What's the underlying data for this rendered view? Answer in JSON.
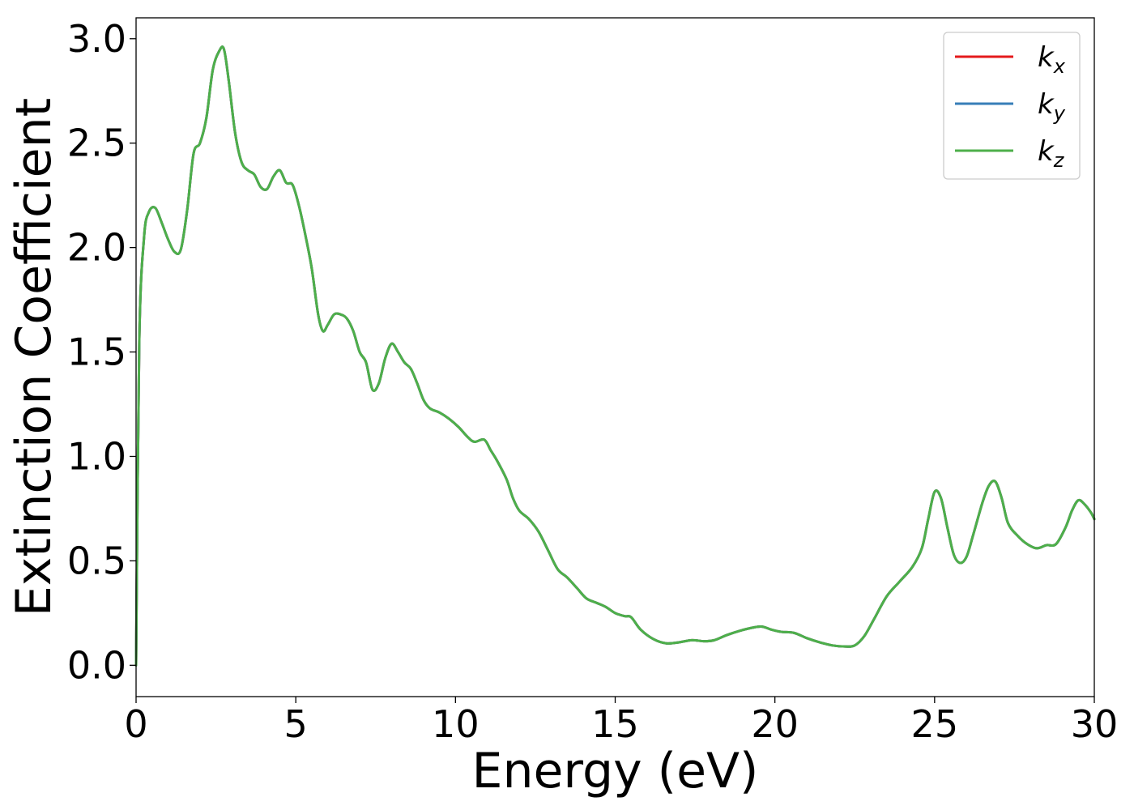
{
  "chart_data": {
    "type": "line",
    "title": "",
    "xlabel": "Energy (eV)",
    "ylabel": "Extinction Coefficient",
    "xlim": [
      0,
      30
    ],
    "ylim": [
      -0.15,
      3.1
    ],
    "xticks": [
      0,
      5,
      10,
      15,
      20,
      25,
      30
    ],
    "xtick_labels": [
      "0",
      "5",
      "10",
      "15",
      "20",
      "25",
      "30"
    ],
    "yticks": [
      0.0,
      0.5,
      1.0,
      1.5,
      2.0,
      2.5,
      3.0
    ],
    "ytick_labels": [
      "0.0",
      "0.5",
      "1.0",
      "1.5",
      "2.0",
      "2.5",
      "3.0"
    ],
    "grid": false,
    "legend_position": "top-right",
    "x": [
      0,
      0.1,
      0.25,
      0.4,
      0.6,
      0.8,
      1.0,
      1.2,
      1.4,
      1.6,
      1.8,
      2.0,
      2.2,
      2.4,
      2.6,
      2.75,
      2.9,
      3.1,
      3.3,
      3.5,
      3.7,
      3.9,
      4.1,
      4.3,
      4.5,
      4.7,
      4.9,
      5.1,
      5.3,
      5.5,
      5.7,
      5.85,
      6.0,
      6.2,
      6.4,
      6.6,
      6.8,
      7.0,
      7.2,
      7.4,
      7.6,
      7.8,
      8.0,
      8.2,
      8.4,
      8.6,
      8.8,
      9.0,
      9.2,
      9.5,
      9.8,
      10.1,
      10.4,
      10.6,
      10.9,
      11.1,
      11.3,
      11.6,
      11.8,
      12.0,
      12.3,
      12.6,
      12.9,
      13.2,
      13.5,
      13.8,
      14.1,
      14.4,
      14.7,
      15.0,
      15.3,
      15.5,
      15.8,
      16.2,
      16.6,
      17.0,
      17.4,
      17.8,
      18.1,
      18.5,
      18.9,
      19.3,
      19.6,
      19.9,
      20.2,
      20.6,
      21.0,
      21.4,
      21.8,
      22.2,
      22.5,
      22.8,
      23.1,
      23.5,
      23.9,
      24.3,
      24.6,
      24.8,
      25.0,
      25.2,
      25.4,
      25.6,
      25.8,
      26.0,
      26.2,
      26.5,
      26.7,
      26.9,
      27.1,
      27.3,
      27.6,
      27.9,
      28.2,
      28.5,
      28.8,
      29.1,
      29.3,
      29.5,
      29.7,
      29.9,
      30.0
    ],
    "series": [
      {
        "name": "k_x",
        "color": "#e41a1c",
        "values": [
          0.0,
          1.55,
          2.05,
          2.17,
          2.19,
          2.12,
          2.04,
          1.98,
          1.99,
          2.18,
          2.45,
          2.5,
          2.62,
          2.85,
          2.94,
          2.95,
          2.8,
          2.55,
          2.41,
          2.37,
          2.35,
          2.29,
          2.28,
          2.34,
          2.37,
          2.31,
          2.3,
          2.2,
          2.06,
          1.9,
          1.68,
          1.6,
          1.63,
          1.68,
          1.68,
          1.66,
          1.6,
          1.5,
          1.45,
          1.32,
          1.35,
          1.47,
          1.54,
          1.5,
          1.45,
          1.42,
          1.35,
          1.27,
          1.23,
          1.21,
          1.18,
          1.14,
          1.09,
          1.07,
          1.08,
          1.03,
          0.98,
          0.89,
          0.8,
          0.74,
          0.7,
          0.64,
          0.55,
          0.46,
          0.42,
          0.37,
          0.32,
          0.3,
          0.28,
          0.25,
          0.235,
          0.23,
          0.17,
          0.125,
          0.105,
          0.11,
          0.12,
          0.115,
          0.12,
          0.145,
          0.165,
          0.18,
          0.185,
          0.17,
          0.16,
          0.155,
          0.13,
          0.11,
          0.095,
          0.09,
          0.095,
          0.14,
          0.22,
          0.33,
          0.4,
          0.47,
          0.56,
          0.7,
          0.83,
          0.8,
          0.66,
          0.53,
          0.49,
          0.52,
          0.62,
          0.78,
          0.86,
          0.88,
          0.8,
          0.68,
          0.62,
          0.58,
          0.56,
          0.575,
          0.58,
          0.66,
          0.74,
          0.79,
          0.77,
          0.73,
          0.7
        ]
      },
      {
        "name": "k_y",
        "color": "#377eb8",
        "values": [
          0.0,
          1.55,
          2.05,
          2.17,
          2.19,
          2.12,
          2.04,
          1.98,
          1.99,
          2.18,
          2.45,
          2.5,
          2.62,
          2.85,
          2.94,
          2.95,
          2.8,
          2.55,
          2.41,
          2.37,
          2.35,
          2.29,
          2.28,
          2.34,
          2.37,
          2.31,
          2.3,
          2.2,
          2.06,
          1.9,
          1.68,
          1.6,
          1.63,
          1.68,
          1.68,
          1.66,
          1.6,
          1.5,
          1.45,
          1.32,
          1.35,
          1.47,
          1.54,
          1.5,
          1.45,
          1.42,
          1.35,
          1.27,
          1.23,
          1.21,
          1.18,
          1.14,
          1.09,
          1.07,
          1.08,
          1.03,
          0.98,
          0.89,
          0.8,
          0.74,
          0.7,
          0.64,
          0.55,
          0.46,
          0.42,
          0.37,
          0.32,
          0.3,
          0.28,
          0.25,
          0.235,
          0.23,
          0.17,
          0.125,
          0.105,
          0.11,
          0.12,
          0.115,
          0.12,
          0.145,
          0.165,
          0.18,
          0.185,
          0.17,
          0.16,
          0.155,
          0.13,
          0.11,
          0.095,
          0.09,
          0.095,
          0.14,
          0.22,
          0.33,
          0.4,
          0.47,
          0.56,
          0.7,
          0.83,
          0.8,
          0.66,
          0.53,
          0.49,
          0.52,
          0.62,
          0.78,
          0.86,
          0.88,
          0.8,
          0.68,
          0.62,
          0.58,
          0.56,
          0.575,
          0.58,
          0.66,
          0.74,
          0.79,
          0.77,
          0.73,
          0.7
        ]
      },
      {
        "name": "k_z",
        "color": "#4daf4a",
        "values": [
          0.0,
          1.55,
          2.05,
          2.17,
          2.19,
          2.12,
          2.04,
          1.98,
          1.99,
          2.18,
          2.45,
          2.5,
          2.62,
          2.85,
          2.94,
          2.95,
          2.8,
          2.55,
          2.41,
          2.37,
          2.35,
          2.29,
          2.28,
          2.34,
          2.37,
          2.31,
          2.3,
          2.2,
          2.06,
          1.9,
          1.68,
          1.6,
          1.63,
          1.68,
          1.68,
          1.66,
          1.6,
          1.5,
          1.45,
          1.32,
          1.35,
          1.47,
          1.54,
          1.5,
          1.45,
          1.42,
          1.35,
          1.27,
          1.23,
          1.21,
          1.18,
          1.14,
          1.09,
          1.07,
          1.08,
          1.03,
          0.98,
          0.89,
          0.8,
          0.74,
          0.7,
          0.64,
          0.55,
          0.46,
          0.42,
          0.37,
          0.32,
          0.3,
          0.28,
          0.25,
          0.235,
          0.23,
          0.17,
          0.125,
          0.105,
          0.11,
          0.12,
          0.115,
          0.12,
          0.145,
          0.165,
          0.18,
          0.185,
          0.17,
          0.16,
          0.155,
          0.13,
          0.11,
          0.095,
          0.09,
          0.095,
          0.14,
          0.22,
          0.33,
          0.4,
          0.47,
          0.56,
          0.7,
          0.83,
          0.8,
          0.66,
          0.53,
          0.49,
          0.52,
          0.62,
          0.78,
          0.86,
          0.88,
          0.8,
          0.68,
          0.62,
          0.58,
          0.56,
          0.575,
          0.58,
          0.66,
          0.74,
          0.79,
          0.77,
          0.73,
          0.7
        ]
      }
    ]
  }
}
